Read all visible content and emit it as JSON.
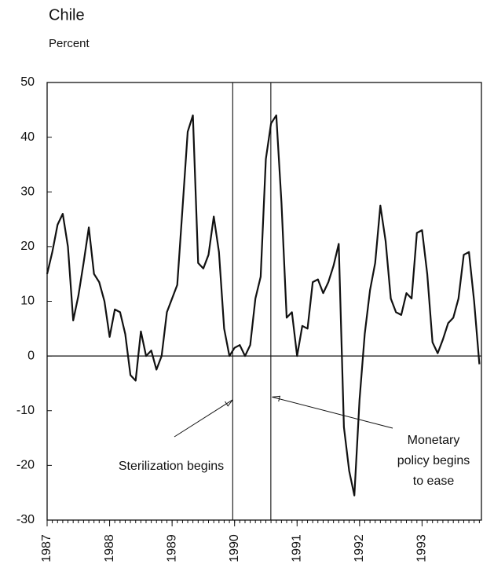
{
  "chart_data": {
    "type": "line",
    "title": "Chile",
    "subtitle": "Percent",
    "x": [
      1987,
      1987.083,
      1987.167,
      1987.25,
      1987.333,
      1987.417,
      1987.5,
      1987.583,
      1987.667,
      1987.75,
      1987.833,
      1987.917,
      1988,
      1988.083,
      1988.167,
      1988.25,
      1988.333,
      1988.417,
      1988.5,
      1988.583,
      1988.667,
      1988.75,
      1988.833,
      1988.917,
      1989,
      1989.083,
      1989.167,
      1989.25,
      1989.333,
      1989.417,
      1989.5,
      1989.583,
      1989.667,
      1989.75,
      1989.833,
      1989.917,
      1990,
      1990.083,
      1990.167,
      1990.25,
      1990.333,
      1990.417,
      1990.5,
      1990.583,
      1990.667,
      1990.75,
      1990.833,
      1990.917,
      1991,
      1991.083,
      1991.167,
      1991.25,
      1991.333,
      1991.417,
      1991.5,
      1991.583,
      1991.667,
      1991.75,
      1991.833,
      1991.917,
      1992,
      1992.083,
      1992.167,
      1992.25,
      1992.333,
      1992.417,
      1992.5,
      1992.583,
      1992.667,
      1992.75,
      1992.833,
      1992.917,
      1993,
      1993.083,
      1993.167,
      1993.25,
      1993.333,
      1993.417,
      1993.5,
      1993.583,
      1993.667,
      1993.75,
      1993.833,
      1993.917
    ],
    "series": [
      {
        "color": "#111111",
        "values": [
          15,
          19,
          24,
          26,
          20,
          6.5,
          11,
          17,
          23.5,
          15,
          13.5,
          10,
          3.5,
          8.5,
          8,
          4,
          -3.5,
          -4.5,
          4.5,
          0,
          1,
          -2.5,
          0,
          8,
          10.5,
          13,
          27,
          41,
          44,
          17,
          16,
          18.5,
          25.5,
          19,
          5,
          0,
          1.5,
          2,
          0,
          2,
          10.5,
          14.5,
          36,
          42.5,
          44,
          28,
          7,
          8,
          0,
          5.5,
          5,
          13.5,
          14,
          11.5,
          13.5,
          16.5,
          20.5,
          -13,
          -21,
          -25.5,
          -8,
          4,
          12,
          17,
          27.5,
          21,
          10.5,
          8,
          7.5,
          11.5,
          10.5,
          22.5,
          23,
          15,
          2.5,
          0.5,
          3,
          6,
          7,
          10.5,
          18.5,
          19,
          10,
          -1.5
        ]
      }
    ],
    "xlim": [
      1987,
      1993.95
    ],
    "xticks": [
      1987,
      1988,
      1989,
      1990,
      1991,
      1992,
      1993
    ],
    "ylim": [
      -30,
      50
    ],
    "yticks": [
      -30,
      -20,
      -10,
      0,
      10,
      20,
      30,
      40,
      50
    ],
    "vertical_lines": [
      1989.97,
      1990.58
    ],
    "annotations": [
      {
        "text": [
          "Sterilization begins"
        ],
        "x": 1989.97,
        "y": -8
      },
      {
        "text": [
          "Monetary",
          "policy begins",
          "to ease"
        ],
        "x": 1990.6,
        "y": -7.5
      }
    ]
  }
}
